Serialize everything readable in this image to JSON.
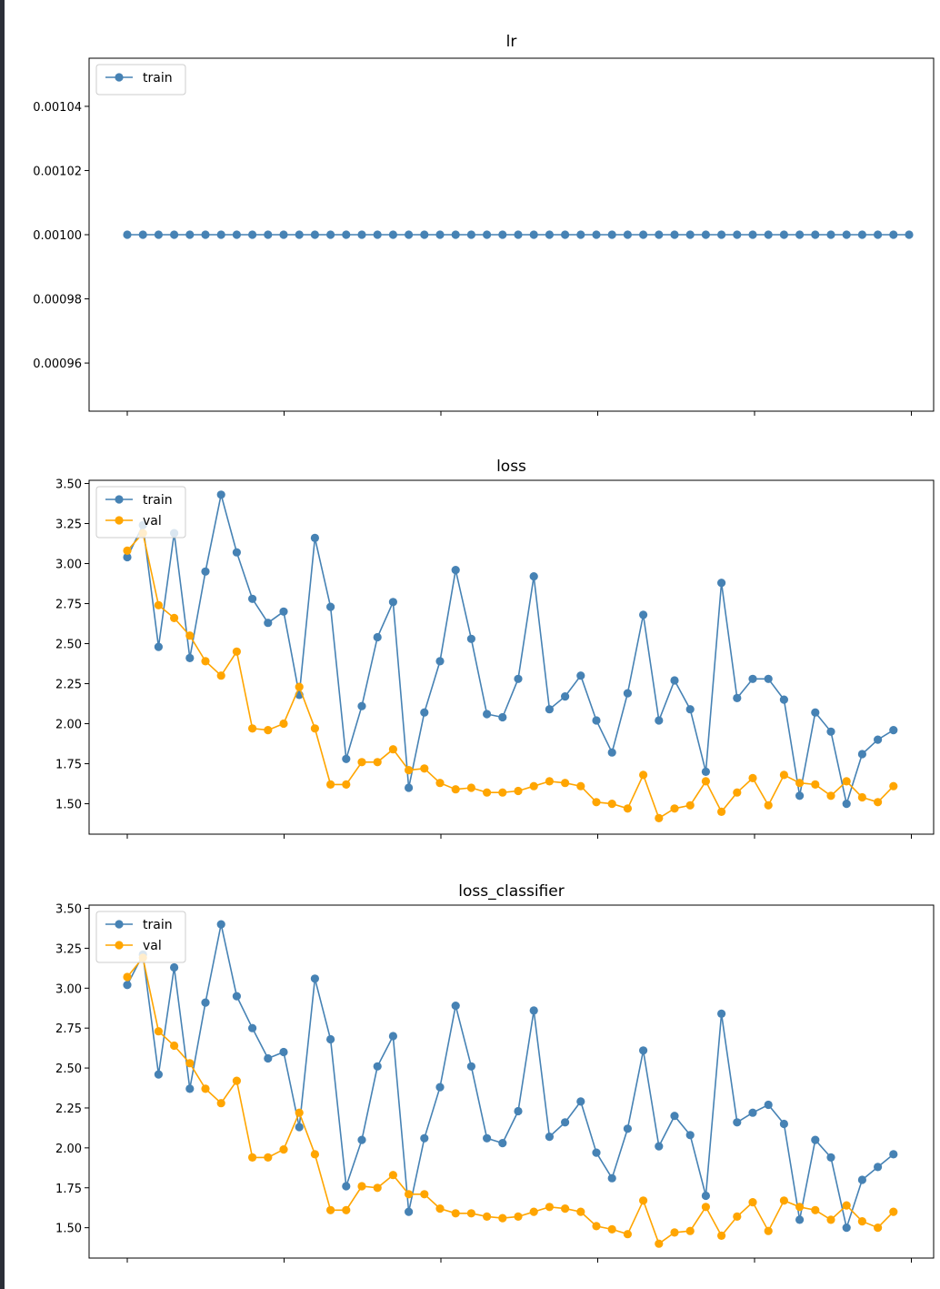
{
  "chart_data": [
    {
      "type": "line",
      "title": "lr",
      "xlabel": "",
      "ylabel": "",
      "ylim": [
        0.000945,
        0.001055
      ],
      "yticks": [
        "0.00096",
        "0.00098",
        "0.00100",
        "0.00102",
        "0.00104"
      ],
      "ytick_values": [
        0.00096,
        0.00098,
        0.001,
        0.00102,
        0.00104
      ],
      "grid": false,
      "legend": "upper left",
      "series": [
        {
          "name": "train",
          "color": "#4682b4",
          "values": [
            0.001,
            0.001,
            0.001,
            0.001,
            0.001,
            0.001,
            0.001,
            0.001,
            0.001,
            0.001,
            0.001,
            0.001,
            0.001,
            0.001,
            0.001,
            0.001,
            0.001,
            0.001,
            0.001,
            0.001,
            0.001,
            0.001,
            0.001,
            0.001,
            0.001,
            0.001,
            0.001,
            0.001,
            0.001,
            0.001,
            0.001,
            0.001,
            0.001,
            0.001,
            0.001,
            0.001,
            0.001,
            0.001,
            0.001,
            0.001,
            0.001,
            0.001,
            0.001,
            0.001,
            0.001,
            0.001,
            0.001,
            0.001,
            0.001,
            0.001,
            0.001
          ]
        }
      ]
    },
    {
      "type": "line",
      "title": "loss",
      "xlabel": "",
      "ylabel": "",
      "ylim": [
        1.31,
        3.52
      ],
      "yticks": [
        "1.50",
        "1.75",
        "2.00",
        "2.25",
        "2.50",
        "2.75",
        "3.00",
        "3.25",
        "3.50"
      ],
      "ytick_values": [
        1.5,
        1.75,
        2.0,
        2.25,
        2.5,
        2.75,
        3.0,
        3.25,
        3.5
      ],
      "grid": false,
      "legend": "upper left",
      "series": [
        {
          "name": "train",
          "color": "#4682b4",
          "values": [
            3.04,
            3.24,
            2.48,
            3.19,
            2.41,
            2.95,
            3.43,
            3.07,
            2.78,
            2.63,
            2.7,
            2.18,
            3.16,
            2.73,
            1.78,
            2.11,
            2.54,
            2.76,
            1.6,
            2.07,
            2.39,
            2.96,
            2.53,
            2.06,
            2.04,
            2.28,
            2.92,
            2.09,
            2.17,
            2.3,
            2.02,
            1.82,
            2.19,
            2.68,
            2.02,
            2.27,
            2.09,
            1.7,
            2.88,
            2.16,
            2.28,
            2.28,
            2.15,
            1.55,
            2.07,
            1.95,
            1.5,
            1.81,
            1.9,
            1.96
          ]
        },
        {
          "name": "val",
          "color": "#ffa500",
          "values": [
            3.08,
            3.19,
            2.74,
            2.66,
            2.55,
            2.39,
            2.3,
            2.45,
            1.97,
            1.96,
            2.0,
            2.23,
            1.97,
            1.62,
            1.62,
            1.76,
            1.76,
            1.84,
            1.71,
            1.72,
            1.63,
            1.59,
            1.6,
            1.57,
            1.57,
            1.58,
            1.61,
            1.64,
            1.63,
            1.61,
            1.51,
            1.5,
            1.47,
            1.68,
            1.41,
            1.47,
            1.49,
            1.64,
            1.45,
            1.57,
            1.66,
            1.49,
            1.68,
            1.63,
            1.62,
            1.55,
            1.64,
            1.54,
            1.51,
            1.61
          ]
        }
      ]
    },
    {
      "type": "line",
      "title": "loss_classifier",
      "xlabel": "",
      "ylabel": "",
      "ylim": [
        1.31,
        3.52
      ],
      "yticks": [
        "1.50",
        "1.75",
        "2.00",
        "2.25",
        "2.50",
        "2.75",
        "3.00",
        "3.25",
        "3.50"
      ],
      "ytick_values": [
        1.5,
        1.75,
        2.0,
        2.25,
        2.5,
        2.75,
        3.0,
        3.25,
        3.5
      ],
      "grid": false,
      "legend": "upper left",
      "series": [
        {
          "name": "train",
          "color": "#4682b4",
          "values": [
            3.02,
            3.21,
            2.46,
            3.13,
            2.37,
            2.91,
            3.4,
            2.95,
            2.75,
            2.56,
            2.6,
            2.13,
            3.06,
            2.68,
            1.76,
            2.05,
            2.51,
            2.7,
            1.6,
            2.06,
            2.38,
            2.89,
            2.51,
            2.06,
            2.03,
            2.23,
            2.86,
            2.07,
            2.16,
            2.29,
            1.97,
            1.81,
            2.12,
            2.61,
            2.01,
            2.2,
            2.08,
            1.7,
            2.84,
            2.16,
            2.22,
            2.27,
            2.15,
            1.55,
            2.05,
            1.94,
            1.5,
            1.8,
            1.88,
            1.96
          ]
        },
        {
          "name": "val",
          "color": "#ffa500",
          "values": [
            3.07,
            3.19,
            2.73,
            2.64,
            2.53,
            2.37,
            2.28,
            2.42,
            1.94,
            1.94,
            1.99,
            2.22,
            1.96,
            1.61,
            1.61,
            1.76,
            1.75,
            1.83,
            1.71,
            1.71,
            1.62,
            1.59,
            1.59,
            1.57,
            1.56,
            1.57,
            1.6,
            1.63,
            1.62,
            1.6,
            1.51,
            1.49,
            1.46,
            1.67,
            1.4,
            1.47,
            1.48,
            1.63,
            1.45,
            1.57,
            1.66,
            1.48,
            1.67,
            1.63,
            1.61,
            1.55,
            1.64,
            1.54,
            1.5,
            1.6
          ]
        }
      ]
    }
  ]
}
